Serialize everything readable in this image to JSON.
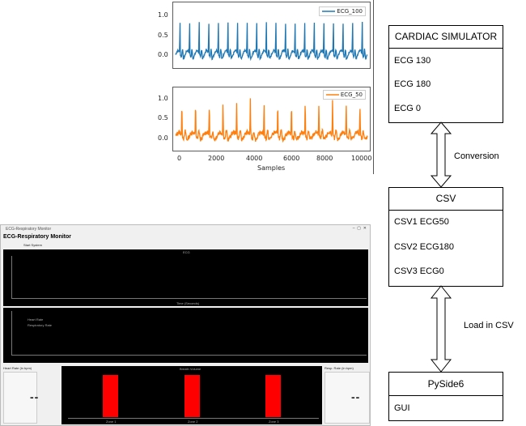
{
  "plots": {
    "top": {
      "legend": "ECG_100",
      "color": "#1f77b4",
      "yticks": [
        "1.0",
        "0.5",
        "0.0"
      ]
    },
    "bottom": {
      "legend": "ECG_50",
      "color": "#ff7f0e",
      "yticks": [
        "1.0",
        "0.5",
        "0.0"
      ],
      "xticks": [
        "0",
        "2000",
        "4000",
        "6000",
        "8000",
        "10000"
      ],
      "xlabel": "Samples"
    }
  },
  "monitor": {
    "window_title": "ECG-Respiratory Monitor",
    "heading": "ECG-Respiratory Monitor",
    "start_button": "Start System",
    "ecg_panel_title": "ECG",
    "ecg_xlabel": "Time (Seconds)",
    "legend_line1": "Heart Rate",
    "legend_line2": "Respiratory Rate",
    "left_label": "Heart Rate (in bpm)",
    "right_label": "Resp. Rate (in bpm)",
    "left_value": "--",
    "right_value": "--",
    "breath_title": "Breath Volume",
    "bar_color": "#ff0000",
    "bar_labels": [
      "Zone 1",
      "Zone 2",
      "Zone 3"
    ]
  },
  "diagram": {
    "box1": {
      "title": "CARDIAC SIMULATOR",
      "items": [
        "ECG 130",
        "ECG 180",
        "ECG 0"
      ]
    },
    "box2": {
      "title": "CSV",
      "items": [
        "CSV1 ECG50",
        "CSV2 ECG180",
        "CSV3 ECG0"
      ]
    },
    "box3": {
      "title": "PySide6",
      "items": [
        "GUI"
      ]
    },
    "arrow1_label": "Conversion",
    "arrow2_label": "Load in CSV"
  }
}
